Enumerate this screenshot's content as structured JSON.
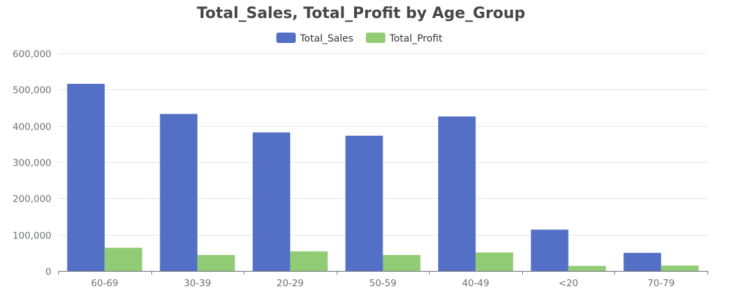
{
  "chart_data": {
    "type": "bar",
    "title": "Total_Sales, Total_Profit by Age_Group",
    "xlabel": "",
    "ylabel": "",
    "categories": [
      "60-69",
      "30-39",
      "20-29",
      "50-59",
      "40-49",
      "<20",
      "70-79"
    ],
    "series": [
      {
        "name": "Total_Sales",
        "color": "#5470c6",
        "values": [
          516000,
          433000,
          382000,
          373000,
          426000,
          114000,
          50000
        ]
      },
      {
        "name": "Total_Profit",
        "color": "#91cc75",
        "values": [
          64000,
          44000,
          54000,
          44000,
          51000,
          14000,
          15000
        ]
      }
    ],
    "ylim": [
      0,
      600000
    ],
    "yticks": [
      0,
      100000,
      200000,
      300000,
      400000,
      500000,
      600000
    ],
    "ytick_labels": [
      "0",
      "100,000",
      "200,000",
      "300,000",
      "400,000",
      "500,000",
      "600,000"
    ],
    "grid": true,
    "legend_position": "top-center"
  }
}
